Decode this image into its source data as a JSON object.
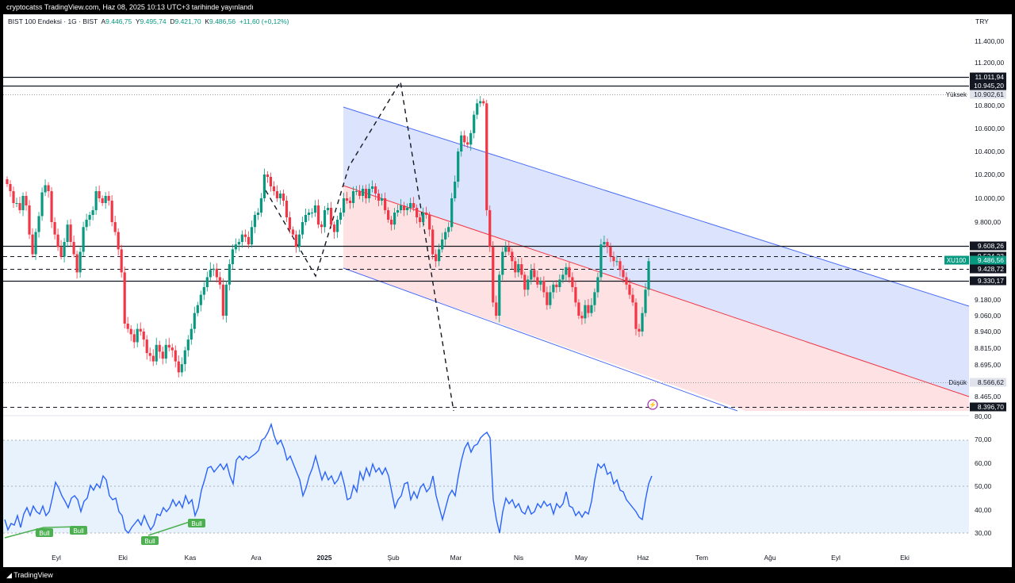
{
  "header": {
    "publisher": "cryptocatss TradingView.com, Haz 08, 2025 10:13 UTC+3 tarihinde yayınlandı",
    "symbol": "BIST 100 Endeksi · 1G · BIST",
    "o_label": "A",
    "o_value": "9.446,75",
    "h_label": "Y",
    "h_value": "9.495,74",
    "l_label": "D",
    "l_value": "9.421,70",
    "c_label": "K",
    "c_value": "9.486,56",
    "change": "+11,60 (+0,12%)",
    "currency": "TRY"
  },
  "footer": {
    "brand": "TradingView"
  },
  "colors": {
    "up": "#089981",
    "down": "#f23645",
    "rsi": "#2962ff",
    "channel_blue": "#dbe4fc",
    "channel_red": "#fde1e3",
    "rsi_band": "#e8f2fd"
  },
  "chart_data": {
    "type": "candlestick",
    "price_axis": {
      "ticks": [
        "11.400,00",
        "11.200,00",
        "10.800,00",
        "10.600,00",
        "10.400,00",
        "10.200,00",
        "10.000,00",
        "9.800,00",
        "9.180,00",
        "9.060,00",
        "8.940,00",
        "8.815,00",
        "8.695,00",
        "8.465,00"
      ],
      "tick_values": [
        11400,
        11200,
        10800,
        10600,
        10400,
        10200,
        10000,
        9800,
        9180,
        9060,
        8940,
        8815,
        8695,
        8465
      ]
    },
    "time_axis": {
      "labels": [
        "Eyl",
        "Eki",
        "Kas",
        "Ara",
        "2025",
        "Şub",
        "Mar",
        "Nis",
        "May",
        "Haz",
        "Tem",
        "Ağu",
        "Eyl",
        "Eki"
      ]
    },
    "levels": [
      {
        "label": "11.011,94",
        "value": 11011.94,
        "style": "solid"
      },
      {
        "label": "10.945,20",
        "value": 10945.2,
        "style": "solid"
      },
      {
        "label": "10.902,61",
        "value": 10902.61,
        "style": "dotted",
        "tag": "Yüksek"
      },
      {
        "label": "9.608,26",
        "value": 9608.26,
        "style": "solid"
      },
      {
        "label": "9.524,23",
        "value": 9524.23,
        "style": "dashed"
      },
      {
        "label": "9.428,72",
        "value": 9428.72,
        "style": "dashed"
      },
      {
        "label": "9.330,17",
        "value": 9330.17,
        "style": "solid"
      },
      {
        "label": "8.566,62",
        "value": 8566.62,
        "style": "dotted",
        "tag": "Düşük"
      },
      {
        "label": "8.396,70",
        "value": 8396.7,
        "style": "dashed"
      }
    ],
    "last_price": {
      "symbol": "XU100",
      "label": "9.486,56",
      "value": 9486.56
    },
    "closes": [
      10120,
      10060,
      9960,
      9960,
      9900,
      10020,
      9940,
      9700,
      9540,
      9720,
      9850,
      10050,
      10110,
      10060,
      9800,
      9700,
      9600,
      9520,
      9640,
      9780,
      9640,
      9540,
      9400,
      9560,
      9760,
      9820,
      9860,
      9900,
      10060,
      10000,
      9960,
      10020,
      9980,
      9800,
      9720,
      9580,
      9400,
      9000,
      8960,
      8920,
      8860,
      8960,
      8940,
      8880,
      8780,
      8760,
      8720,
      8840,
      8790,
      8740,
      8840,
      8820,
      8800,
      8720,
      8640,
      8700,
      8800,
      8880,
      8960,
      9080,
      9140,
      9220,
      9280,
      9360,
      9420,
      9430,
      9360,
      9300,
      9060,
      9300,
      9460,
      9580,
      9620,
      9640,
      9700,
      9680,
      9620,
      9760,
      9860,
      9880,
      10000,
      10200,
      10180,
      10100,
      10060,
      10000,
      10040,
      9980,
      9840,
      9740,
      9700,
      9600,
      9700,
      9800,
      9860,
      9880,
      9880,
      9940,
      9780,
      9760,
      9900,
      9920,
      9780,
      9720,
      9820,
      9880,
      10000,
      9980,
      9960,
      10060,
      10060,
      10020,
      10080,
      10000,
      10080,
      10100,
      10040,
      9980,
      10000,
      9900,
      9820,
      9780,
      9880,
      9900,
      9940,
      9900,
      9920,
      9960,
      9920,
      9840,
      9800,
      9880,
      9860,
      9740,
      9540,
      9480,
      9580,
      9660,
      9720,
      9760,
      10000,
      10140,
      10400,
      10540,
      10480,
      10460,
      10560,
      10720,
      10820,
      10840,
      10820,
      9900,
      9600,
      9160,
      9060,
      9380,
      9560,
      9600,
      9560,
      9480,
      9400,
      9460,
      9380,
      9260,
      9340,
      9420,
      9360,
      9300,
      9330,
      9240,
      9140,
      9240,
      9300,
      9280,
      9340,
      9380,
      9440,
      9360,
      9280,
      9160,
      9060,
      9040,
      9140,
      9080,
      9140,
      9240,
      9360,
      9620,
      9640,
      9600,
      9520,
      9480,
      9480,
      9420,
      9360,
      9300,
      9220,
      9160,
      8960,
      8940,
      9080,
      9260,
      9480
    ]
  }
}
